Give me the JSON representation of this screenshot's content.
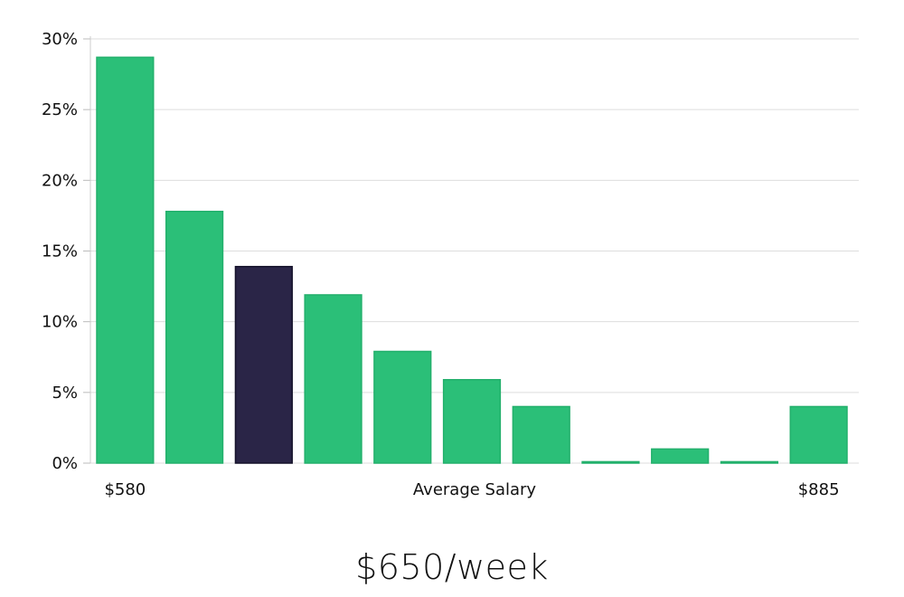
{
  "chart_data": {
    "type": "bar",
    "values": [
      28.7,
      17.8,
      13.9,
      11.9,
      7.9,
      5.9,
      4.0,
      0.1,
      1.0,
      0.1,
      4.0
    ],
    "highlight_index": 2,
    "ylim": [
      0,
      30
    ],
    "yticks": [
      "0%",
      "5%",
      "10%",
      "15%",
      "20%",
      "25%",
      "30%"
    ],
    "ytick_values": [
      0,
      5,
      10,
      15,
      20,
      25,
      30
    ],
    "x_min_label": "$580",
    "x_max_label": "$885",
    "xlabel": "Average Salary",
    "grid": true,
    "colors": {
      "bar": "#2bbf78",
      "bar_edge": "#23b06c",
      "highlight": "#2a2547",
      "highlight_edge": "#15122a",
      "grid": "#dddddd"
    }
  },
  "value_label": "$650/week"
}
